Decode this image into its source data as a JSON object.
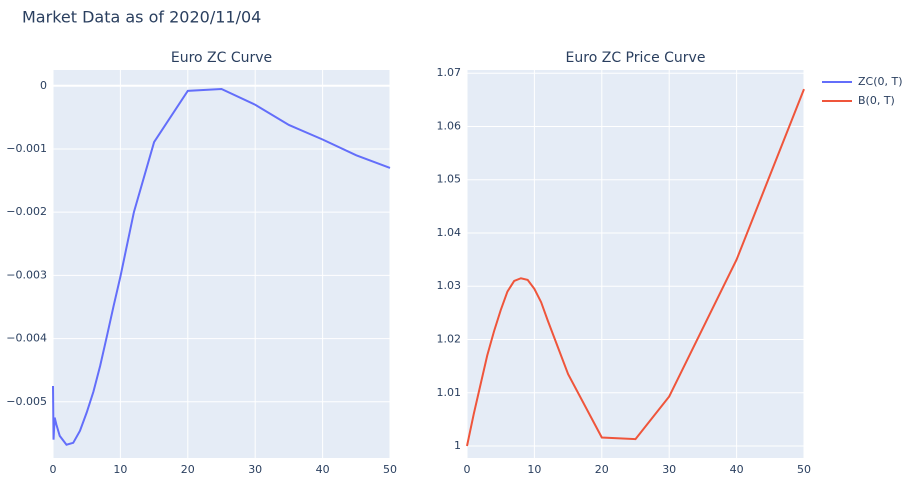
{
  "title": "Market Data as of 2020/11/04",
  "chart_data": [
    {
      "type": "line",
      "title": "Euro ZC Curve",
      "x": [
        0,
        0.08,
        0.25,
        0.5,
        1,
        2,
        3,
        4,
        5,
        6,
        7,
        8,
        9,
        10,
        12,
        15,
        20,
        25,
        30,
        35,
        40,
        45,
        50
      ],
      "series": [
        {
          "name": "ZC(0, T)",
          "color": "#636efa",
          "values": [
            -0.00475,
            -0.0056,
            -0.00525,
            -0.00536,
            -0.00554,
            -0.00568,
            -0.00565,
            -0.00546,
            -0.00517,
            -0.00484,
            -0.00443,
            -0.00396,
            -0.00348,
            -0.00302,
            -0.002,
            -0.00089,
            -8e-05,
            -5e-05,
            -0.0003,
            -0.00062,
            -0.00085,
            -0.0011,
            -0.0013
          ]
        }
      ],
      "xlim": [
        0,
        50
      ],
      "xticks": [
        0,
        10,
        20,
        30,
        40,
        50
      ],
      "ylim": [
        -0.00589,
        0.00025
      ],
      "yticks": [
        {
          "value": -0.005,
          "label": "−0.005"
        },
        {
          "value": -0.004,
          "label": "−0.004"
        },
        {
          "value": -0.003,
          "label": "−0.003"
        },
        {
          "value": -0.002,
          "label": "−0.002"
        },
        {
          "value": -0.001,
          "label": "−0.001"
        },
        0
      ],
      "grid": true
    },
    {
      "type": "line",
      "title": "Euro ZC Price Curve",
      "x": [
        0,
        1,
        2,
        3,
        4,
        5,
        6,
        7,
        8,
        9,
        10,
        11,
        12,
        15,
        20,
        25,
        30,
        40,
        50
      ],
      "series": [
        {
          "name": "B(0, T)",
          "color": "#EF553B",
          "values": [
            1.0,
            1.006,
            1.0115,
            1.017,
            1.0215,
            1.0255,
            1.029,
            1.031,
            1.0315,
            1.0312,
            1.0295,
            1.027,
            1.0235,
            1.0135,
            1.0016,
            1.0013,
            1.0093,
            1.035,
            1.067
          ]
        }
      ],
      "xlim": [
        0,
        50
      ],
      "xticks": [
        0,
        10,
        20,
        30,
        40,
        50
      ],
      "ylim": [
        0.99775,
        1.0706
      ],
      "yticks": [
        1,
        1.01,
        1.02,
        1.03,
        1.04,
        1.05,
        1.06,
        1.07
      ],
      "grid": true
    }
  ]
}
